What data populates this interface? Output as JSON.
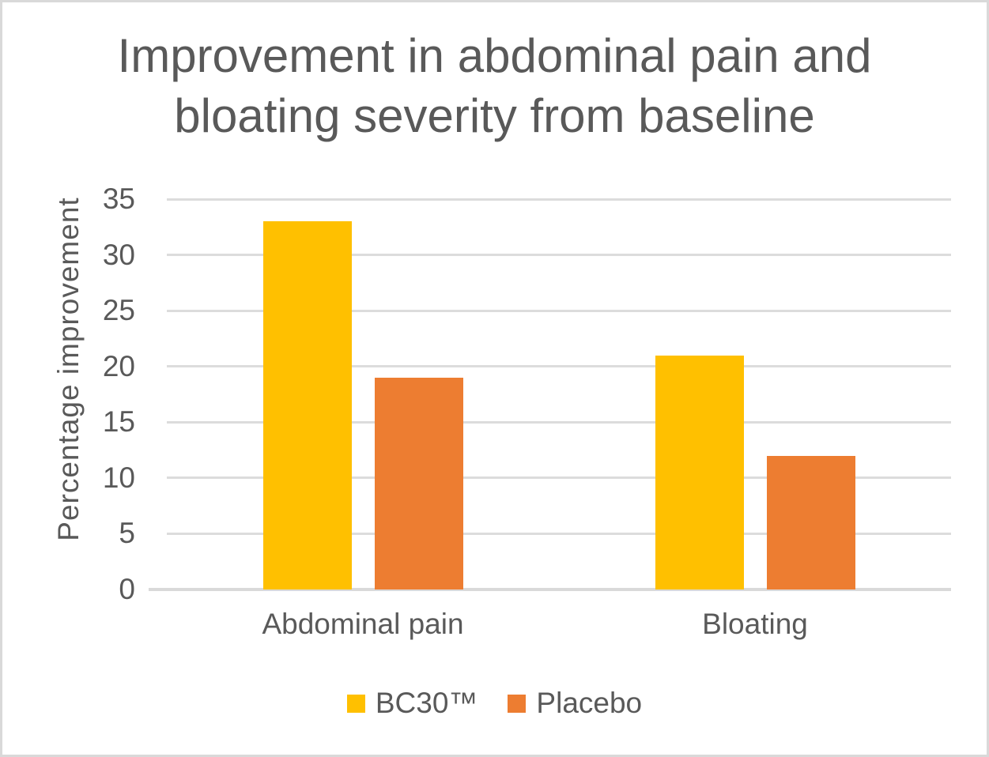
{
  "chart_data": {
    "type": "bar",
    "title": "Improvement in abdominal pain and bloating severity from baseline",
    "xlabel": "",
    "ylabel": "Percentage improvement",
    "categories": [
      "Abdominal pain",
      "Bloating"
    ],
    "series": [
      {
        "name": "BC30™",
        "color": "#FFC000",
        "values": [
          33,
          21
        ]
      },
      {
        "name": "Placebo",
        "color": "#ED7D31",
        "values": [
          19,
          12
        ]
      }
    ],
    "ylim": [
      0,
      35
    ],
    "ytick_step": 5,
    "grid": "horizontal-only",
    "legend_position": "bottom-center",
    "colors": {
      "text": "#595959",
      "gridline": "#DCDCDC",
      "axis_line": "#D9D9D9",
      "frame_border": "#D9D9D9",
      "background": "#FFFFFF"
    }
  }
}
